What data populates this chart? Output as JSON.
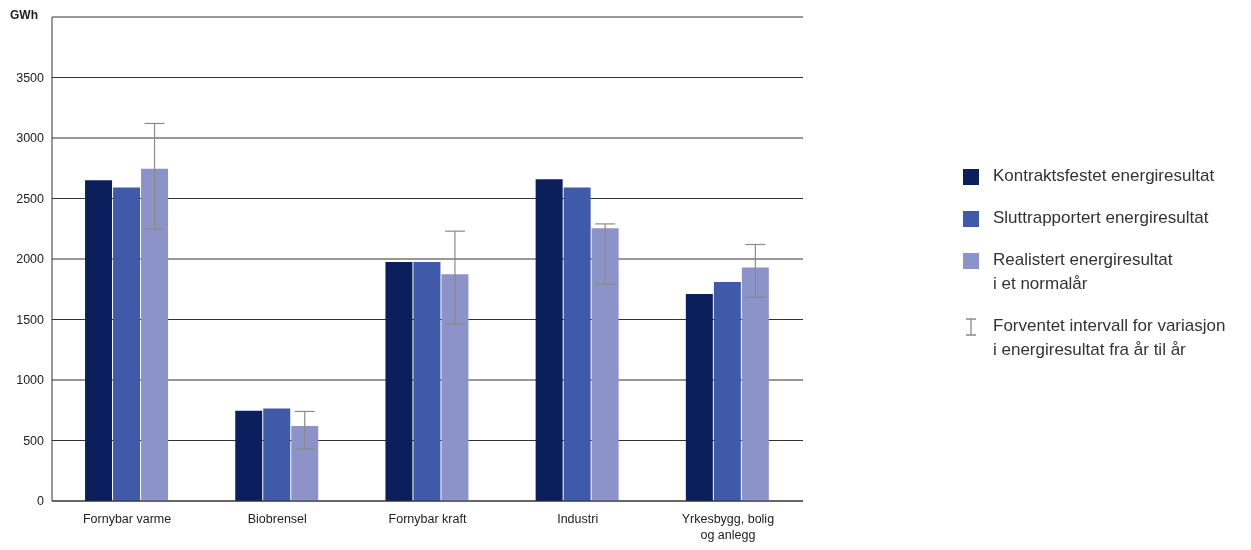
{
  "chart_data": {
    "type": "bar",
    "ylabel": "GWh",
    "categories": [
      "Fornybar varme",
      "Biobrensel",
      "Fornybar kraft",
      "Industri",
      "Yrkesbygg, bolig og anlegg"
    ],
    "series": [
      {
        "name": "Kontraktsfestet energiresultat",
        "color": "#0b1f5c",
        "values": [
          2650,
          745,
          1975,
          2660,
          1710
        ]
      },
      {
        "name": "Sluttrapportert energiresultat",
        "color": "#3f5aa9",
        "values": [
          2590,
          765,
          1975,
          2590,
          1810
        ]
      },
      {
        "name": "Realistert energiresultat\ni et normalår",
        "color": "#8c93c9",
        "values": [
          2745,
          620,
          1875,
          2255,
          1930
        ],
        "errors": [
          [
            2245,
            3120
          ],
          [
            430,
            740
          ],
          [
            1465,
            2230
          ],
          [
            1790,
            2290
          ],
          [
            1685,
            2120
          ]
        ]
      }
    ],
    "ylim": [
      0,
      4000
    ],
    "yticks": [
      0,
      500,
      1000,
      1500,
      2000,
      2500,
      3000,
      3500
    ],
    "grid": "y",
    "legend": "right",
    "annotations": [
      "Forventet intervall for variasjon\ni energiresultat fra år til år"
    ]
  }
}
